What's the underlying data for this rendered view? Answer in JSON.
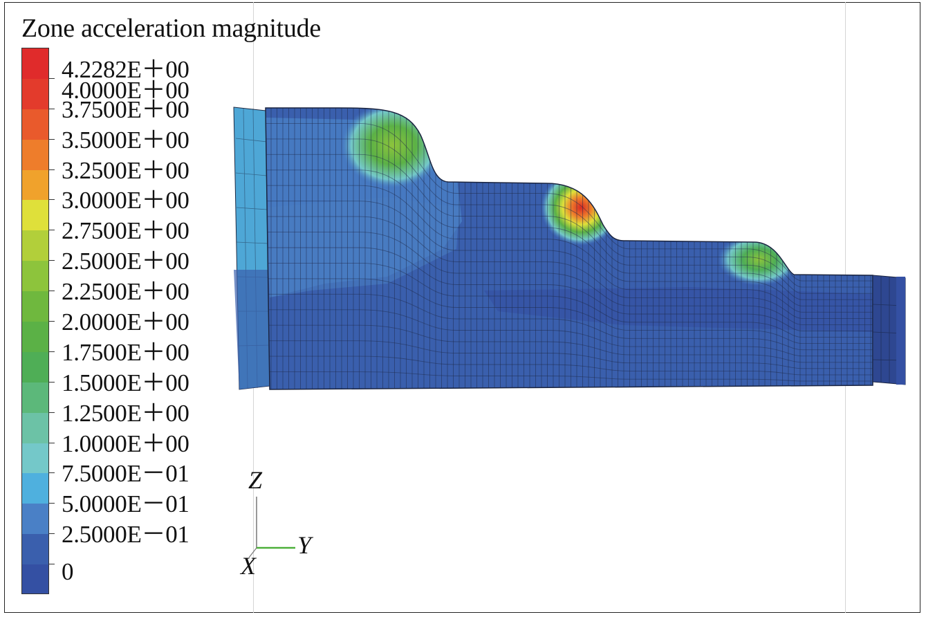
{
  "legend": {
    "title": "Zone acceleration magnitude",
    "entries": [
      {
        "label": "4.2282E＋00",
        "color": "#e02b2b"
      },
      {
        "label": "4.0000E＋00",
        "color": "#e33b2c"
      },
      {
        "label": "3.7500E＋00",
        "color": "#e95a2c"
      },
      {
        "label": "3.5000E＋00",
        "color": "#ee7d2b"
      },
      {
        "label": "3.2500E＋00",
        "color": "#f0a22c"
      },
      {
        "label": "3.0000E＋00",
        "color": "#dfe03a"
      },
      {
        "label": "2.7500E＋00",
        "color": "#b2cf3a"
      },
      {
        "label": "2.5000E＋00",
        "color": "#8dc43c"
      },
      {
        "label": "2.2500E＋00",
        "color": "#6fb83e"
      },
      {
        "label": "2.0000E＋00",
        "color": "#5bb146"
      },
      {
        "label": "1.7500E＋00",
        "color": "#4fae56"
      },
      {
        "label": "1.5000E＋00",
        "color": "#5cb87a"
      },
      {
        "label": "1.2500E＋00",
        "color": "#6cc2a6"
      },
      {
        "label": "1.0000E＋00",
        "color": "#74c8c9"
      },
      {
        "label": "7.5000E－01",
        "color": "#4fb0de"
      },
      {
        "label": "5.0000E－01",
        "color": "#4a80c6"
      },
      {
        "label": "2.5000E－01",
        "color": "#3a5fad"
      },
      {
        "label": "0",
        "color": "#3450a3"
      }
    ]
  },
  "axes": {
    "z": "Z",
    "y": "Y",
    "x": "X"
  }
}
